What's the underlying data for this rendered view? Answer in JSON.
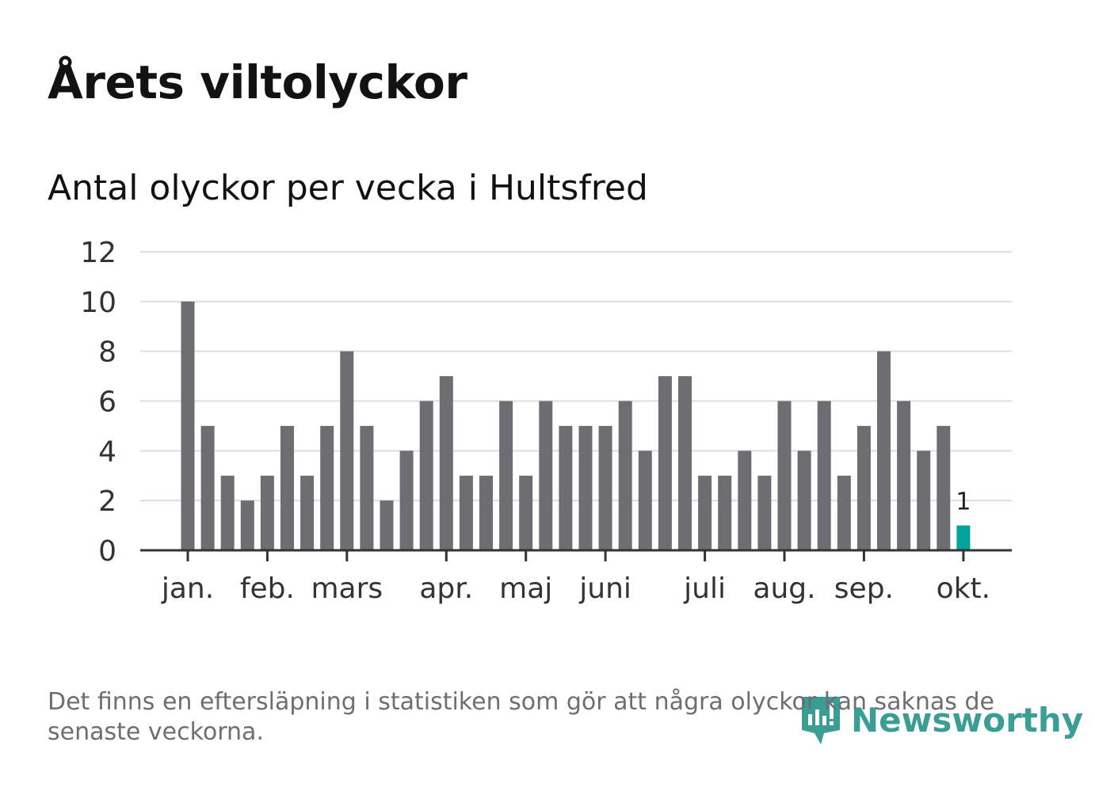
{
  "chart_data": {
    "type": "bar",
    "title": "Årets viltolyckor",
    "subtitle": "Antal olyckor per vecka i Hultsfred",
    "xlabel": "",
    "ylabel": "",
    "ylim": [
      0,
      12
    ],
    "yticks": [
      0,
      2,
      4,
      6,
      8,
      10,
      12
    ],
    "grid": true,
    "values": [
      10,
      5,
      3,
      2,
      3,
      5,
      3,
      5,
      8,
      5,
      2,
      4,
      6,
      7,
      3,
      3,
      6,
      3,
      6,
      5,
      5,
      5,
      6,
      4,
      7,
      7,
      3,
      3,
      4,
      3,
      6,
      4,
      6,
      3,
      5,
      8,
      6,
      4,
      5,
      1
    ],
    "month_ticks": [
      {
        "label": "jan.",
        "week_index": 0
      },
      {
        "label": "feb.",
        "week_index": 4
      },
      {
        "label": "mars",
        "week_index": 8
      },
      {
        "label": "apr.",
        "week_index": 13
      },
      {
        "label": "maj",
        "week_index": 17
      },
      {
        "label": "juni",
        "week_index": 21
      },
      {
        "label": "juli",
        "week_index": 26
      },
      {
        "label": "aug.",
        "week_index": 30
      },
      {
        "label": "sep.",
        "week_index": 34
      },
      {
        "label": "okt.",
        "week_index": 39
      }
    ],
    "annotation": {
      "label": "1",
      "week_index": 39
    },
    "colors": {
      "bar": "#6e6d72",
      "highlight": "#00a39a",
      "grid": "#dddddd",
      "axis": "#333333"
    }
  },
  "note": "Det finns en eftersläpning i statistiken som gör att några olyckor kan saknas de senaste veckorna.",
  "logo": {
    "text": "Newsworthy",
    "color": "#3a9e94"
  }
}
